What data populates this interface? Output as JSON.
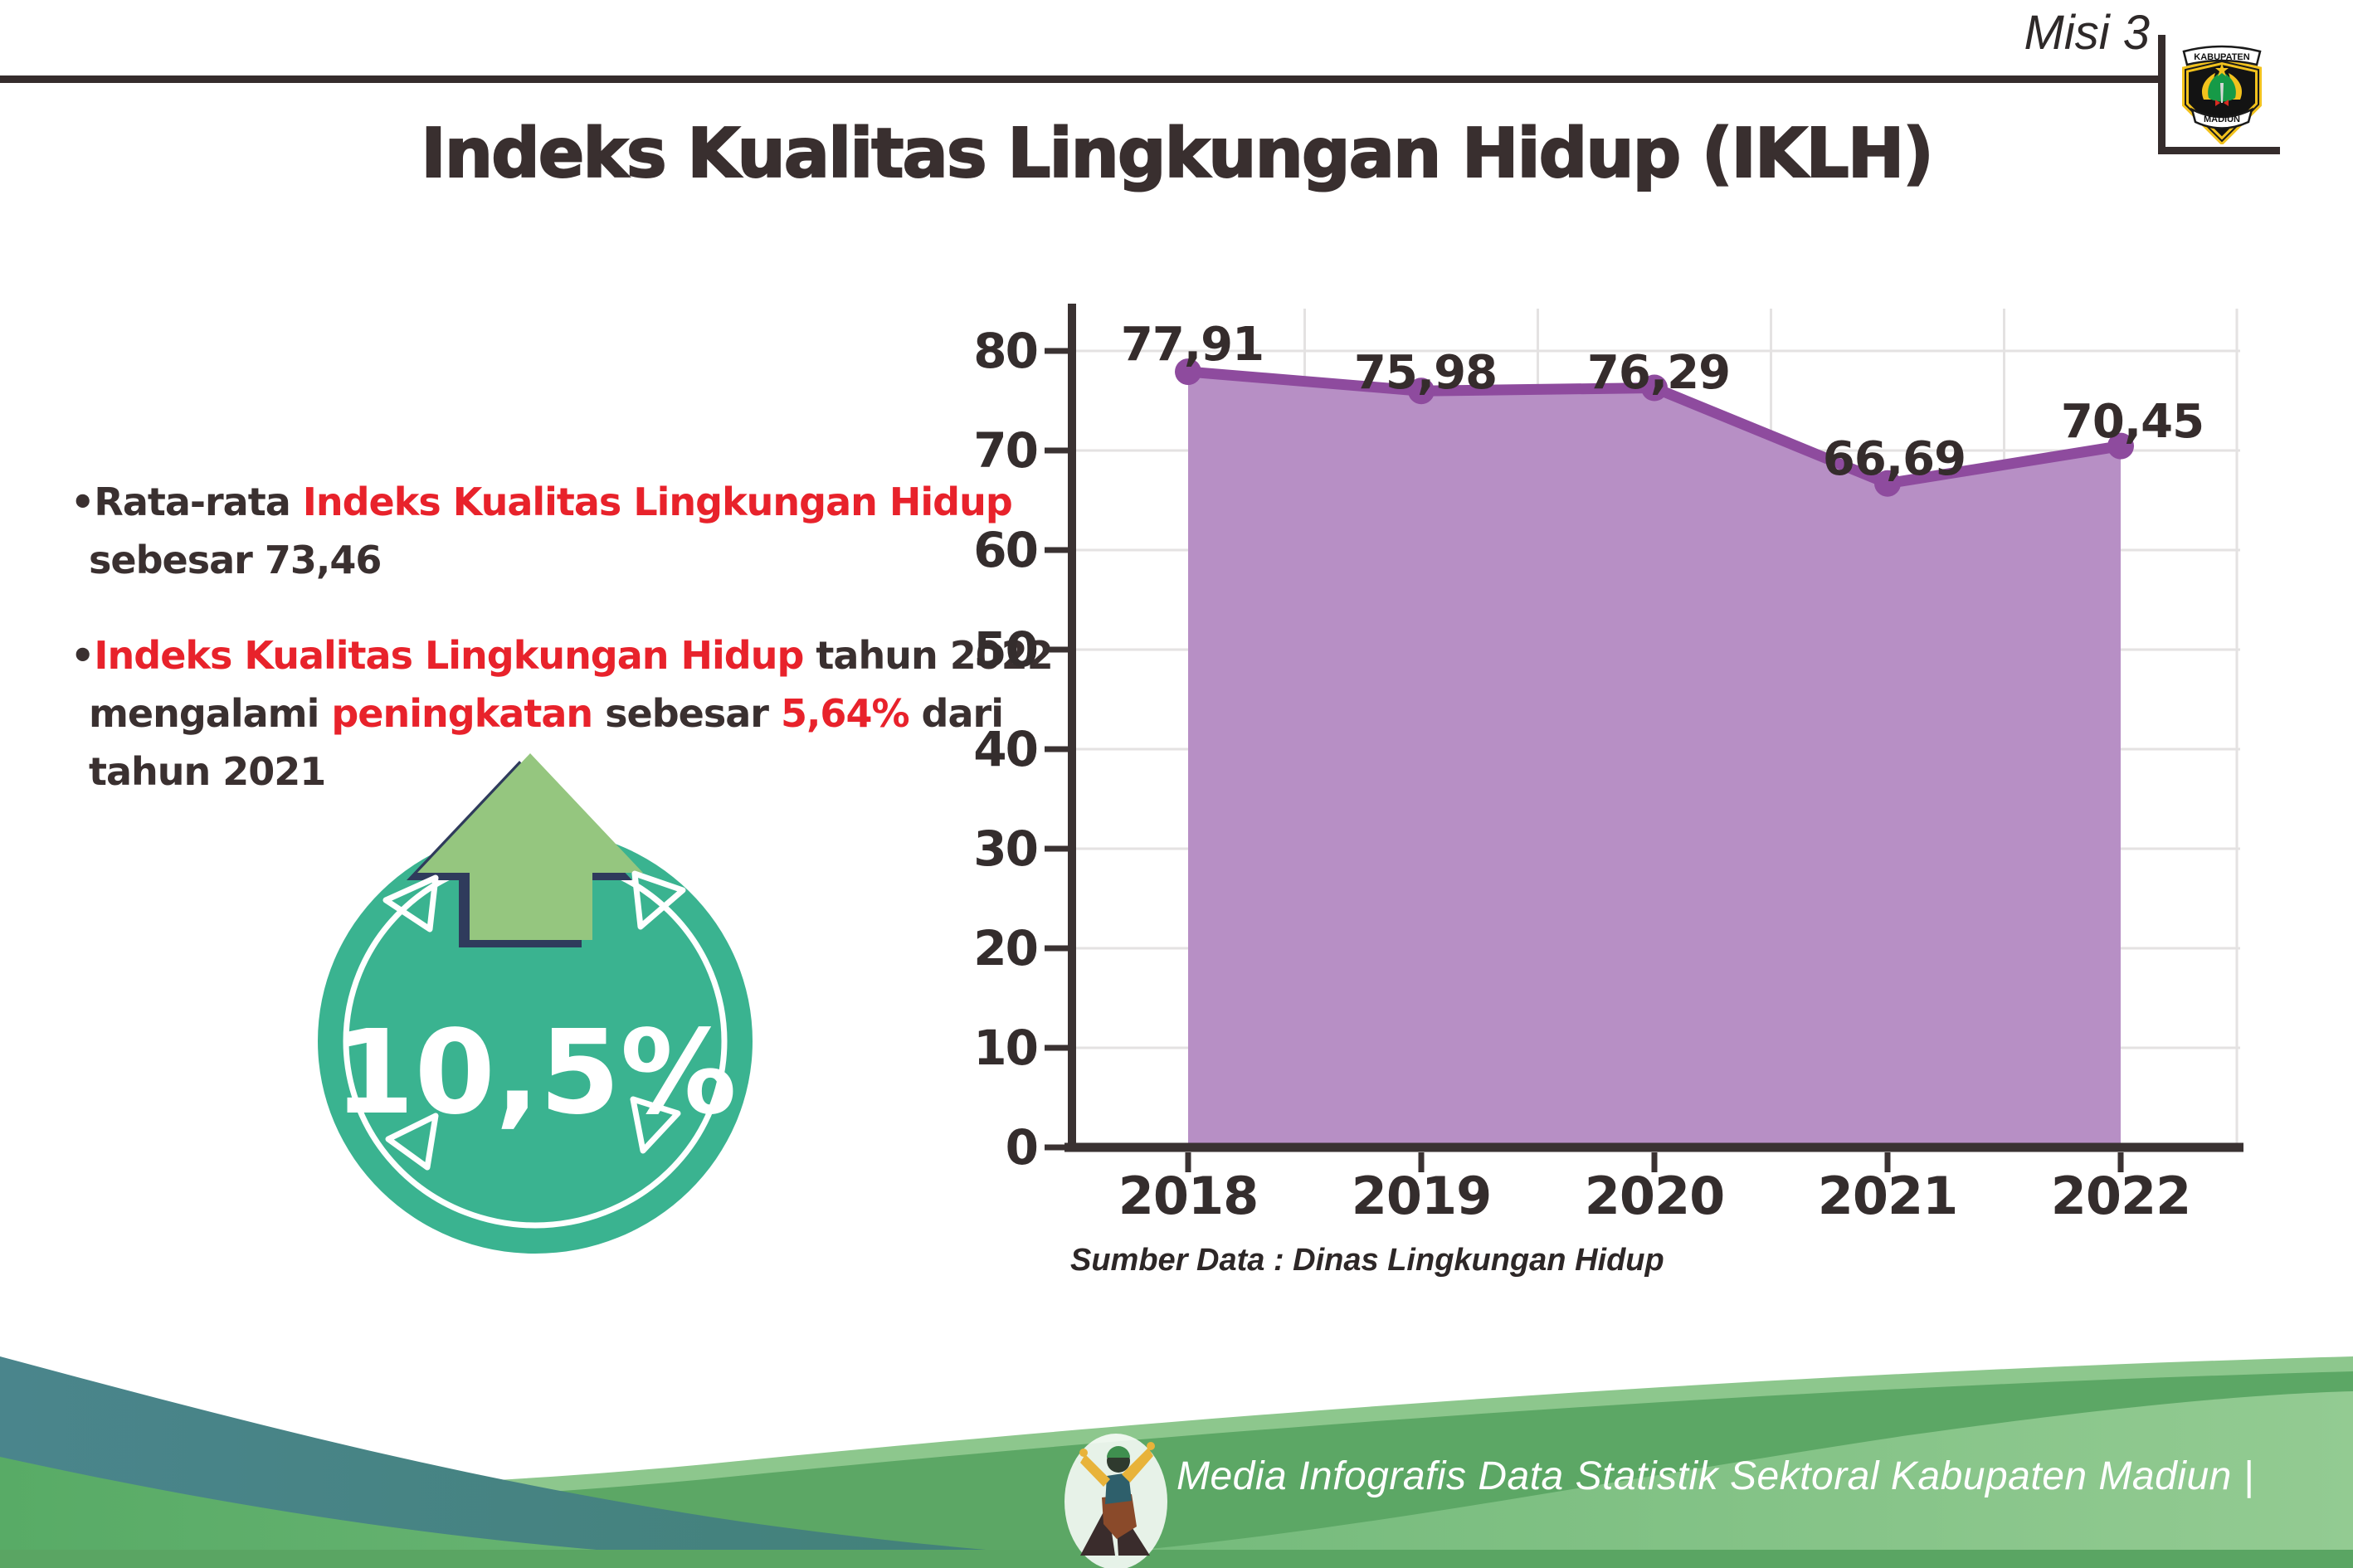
{
  "header": {
    "misi": "Misi 3",
    "title": "Indeks Kualitas Lingkungan Hidup (IKLH)",
    "logo_top": "KABUPATEN",
    "logo_bottom": "MADIUN"
  },
  "bullets": {
    "dot": "•",
    "b1_seg1": "Rata-rata ",
    "b1_seg2": "Indeks Kualitas Lingkungan Hidup",
    "b1_line2": "sebesar 73,46",
    "b2_seg1": "Indeks Kualitas Lingkungan Hidup",
    "b2_seg2": " tahun 2022",
    "b2_l2_seg1": "mengalami ",
    "b2_l2_seg2": "peningkatan",
    "b2_l2_seg3": " sebesar ",
    "b2_l2_seg4": "5,64%",
    "b2_l2_seg5": " dari",
    "b2_line3": "tahun 2021"
  },
  "badge": {
    "value": "10,5%"
  },
  "chart_data": {
    "type": "area",
    "title": "",
    "categories": [
      "2018",
      "2019",
      "2020",
      "2021",
      "2022"
    ],
    "values": [
      77.91,
      75.98,
      76.29,
      66.69,
      70.45
    ],
    "point_labels": [
      "77,91",
      "75,98",
      "76,29",
      "66,69",
      "70,45"
    ],
    "y_ticks": [
      "80",
      "70",
      "60",
      "50",
      "40",
      "30",
      "20",
      "10",
      "0"
    ],
    "ylim": [
      0,
      85
    ],
    "xlabel": "",
    "ylabel": "",
    "grid": true,
    "legend": false,
    "fill_color": "#b78fc5",
    "line_color": "#8e4b9e",
    "source": "Sumber Data : Dinas Lingkungan Hidup"
  },
  "footer": {
    "text": "Media Infografis Data Statistik Sektoral Kabupaten Madiun |"
  },
  "colors": {
    "accent_red": "#e8222b",
    "text_dark": "#3a3030",
    "badge_teal": "#3ab390",
    "arrow_green": "#95c67f",
    "arrow_outline_navy": "#2f3b5c",
    "footer_teal": "#4a858c",
    "footer_green": "#6cb873"
  }
}
